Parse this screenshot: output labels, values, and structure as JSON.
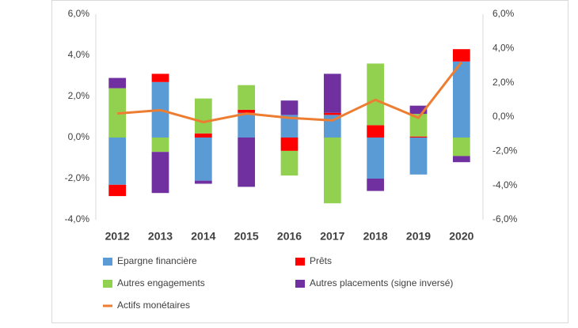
{
  "chart_data": {
    "type": "bar",
    "categories": [
      "2012",
      "2013",
      "2014",
      "2015",
      "2016",
      "2017",
      "2018",
      "2019",
      "2020"
    ],
    "series": [
      {
        "name": "Epargne financière",
        "color": "#5B9BD5",
        "values": [
          -2.3,
          2.7,
          -2.1,
          1.2,
          1.1,
          1.1,
          -2.0,
          -1.8,
          3.7
        ]
      },
      {
        "name": "Prêts",
        "color": "#FF0000",
        "values": [
          -0.55,
          0.4,
          0.2,
          0.15,
          -0.65,
          0.1,
          0.6,
          0.05,
          0.6
        ]
      },
      {
        "name": "Autres engagements",
        "color": "#92D050",
        "values": [
          2.4,
          -0.7,
          1.7,
          1.2,
          -1.2,
          -3.2,
          3.0,
          1.1,
          -0.9
        ]
      },
      {
        "name": "Autres placements (signe inversé)",
        "color": "#7030A0",
        "values": [
          0.5,
          -2.0,
          -0.15,
          -2.4,
          0.7,
          1.9,
          -0.6,
          0.4,
          -0.3
        ]
      },
      {
        "name": "Actifs monétaires",
        "color": "#ED7D31",
        "type": "line",
        "axis": "y2",
        "values": [
          0.2,
          0.4,
          -0.3,
          0.2,
          -0.05,
          -0.2,
          1.0,
          -0.05,
          3.2
        ]
      }
    ],
    "ylim": [
      -4,
      6
    ],
    "yticks": [
      {
        "value": -4,
        "label": "-4,0%"
      },
      {
        "value": -2,
        "label": "-2,0%"
      },
      {
        "value": 0,
        "label": "0,0%"
      },
      {
        "value": 2,
        "label": "2,0%"
      },
      {
        "value": 4,
        "label": "4,0%"
      },
      {
        "value": 6,
        "label": "6,0%"
      }
    ],
    "y2lim": [
      -6,
      6
    ],
    "y2ticks": [
      {
        "value": -6,
        "label": "-6,0%"
      },
      {
        "value": -4,
        "label": "-4,0%"
      },
      {
        "value": -2,
        "label": "-2,0%"
      },
      {
        "value": 0,
        "label": "0,0%"
      },
      {
        "value": 2,
        "label": "2,0%"
      },
      {
        "value": 4,
        "label": "4,0%"
      },
      {
        "value": 6,
        "label": "6,0%"
      }
    ],
    "grid": false
  }
}
